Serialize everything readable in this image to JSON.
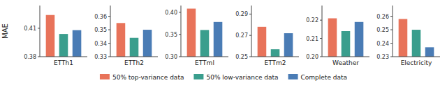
{
  "chart_data": [
    {
      "type": "bar",
      "y_label": "MAE",
      "categories": [
        "ETTh1"
      ],
      "series": [
        {
          "name": "50% top-variance data",
          "color": "#E8735A",
          "values": [
            0.424
          ]
        },
        {
          "name": "50% low-variance data",
          "color": "#3A9E8D",
          "values": [
            0.404
          ]
        },
        {
          "name": "Complete data",
          "color": "#4A7CB5",
          "values": [
            0.408
          ]
        }
      ],
      "ylim": [
        0.38,
        0.434
      ],
      "yticks": [
        0.38,
        0.41
      ],
      "legend": "bottom"
    },
    {
      "type": "bar",
      "categories": [
        "ETTh2"
      ],
      "series": [
        {
          "color": "#E8735A",
          "values": [
            0.355
          ]
        },
        {
          "color": "#3A9E8D",
          "values": [
            0.344
          ]
        },
        {
          "color": "#4A7CB5",
          "values": [
            0.35
          ]
        }
      ],
      "ylim": [
        0.33,
        0.368
      ],
      "yticks": [
        0.33,
        0.34,
        0.35,
        0.36
      ]
    },
    {
      "type": "bar",
      "categories": [
        "ETTml"
      ],
      "series": [
        {
          "color": "#E8735A",
          "values": [
            0.408
          ]
        },
        {
          "color": "#3A9E8D",
          "values": [
            0.36
          ]
        },
        {
          "color": "#4A7CB5",
          "values": [
            0.378
          ]
        }
      ],
      "ylim": [
        0.3,
        0.415
      ],
      "yticks": [
        {
          "value": 0.3,
          "label": "0.30"
        },
        0.35,
        {
          "value": 0.4,
          "label": "0.40"
        }
      ]
    },
    {
      "type": "bar",
      "categories": [
        "ETTm2"
      ],
      "series": [
        {
          "color": "#E8735A",
          "values": [
            0.278
          ]
        },
        {
          "color": "#3A9E8D",
          "values": [
            0.257
          ]
        },
        {
          "color": "#4A7CB5",
          "values": [
            0.272
          ]
        }
      ],
      "ylim": [
        0.25,
        0.298
      ],
      "yticks": [
        0.25,
        0.27,
        0.29
      ]
    },
    {
      "type": "bar",
      "categories": [
        "Weather"
      ],
      "series": [
        {
          "color": "#E8735A",
          "values": [
            0.221
          ]
        },
        {
          "color": "#3A9E8D",
          "values": [
            0.214
          ]
        },
        {
          "color": "#4A7CB5",
          "values": [
            0.219
          ]
        }
      ],
      "ylim": [
        0.2,
        0.228
      ],
      "yticks": [
        {
          "value": 0.2,
          "label": "0.20"
        },
        0.21,
        0.22
      ]
    },
    {
      "type": "bar",
      "categories": [
        "Electricity"
      ],
      "series": [
        {
          "color": "#E8735A",
          "values": [
            0.258
          ]
        },
        {
          "color": "#3A9E8D",
          "values": [
            0.25
          ]
        },
        {
          "color": "#4A7CB5",
          "values": [
            0.237
          ]
        }
      ],
      "ylim": [
        0.23,
        0.268
      ],
      "yticks": [
        0.23,
        0.24,
        0.25,
        0.26
      ]
    }
  ]
}
